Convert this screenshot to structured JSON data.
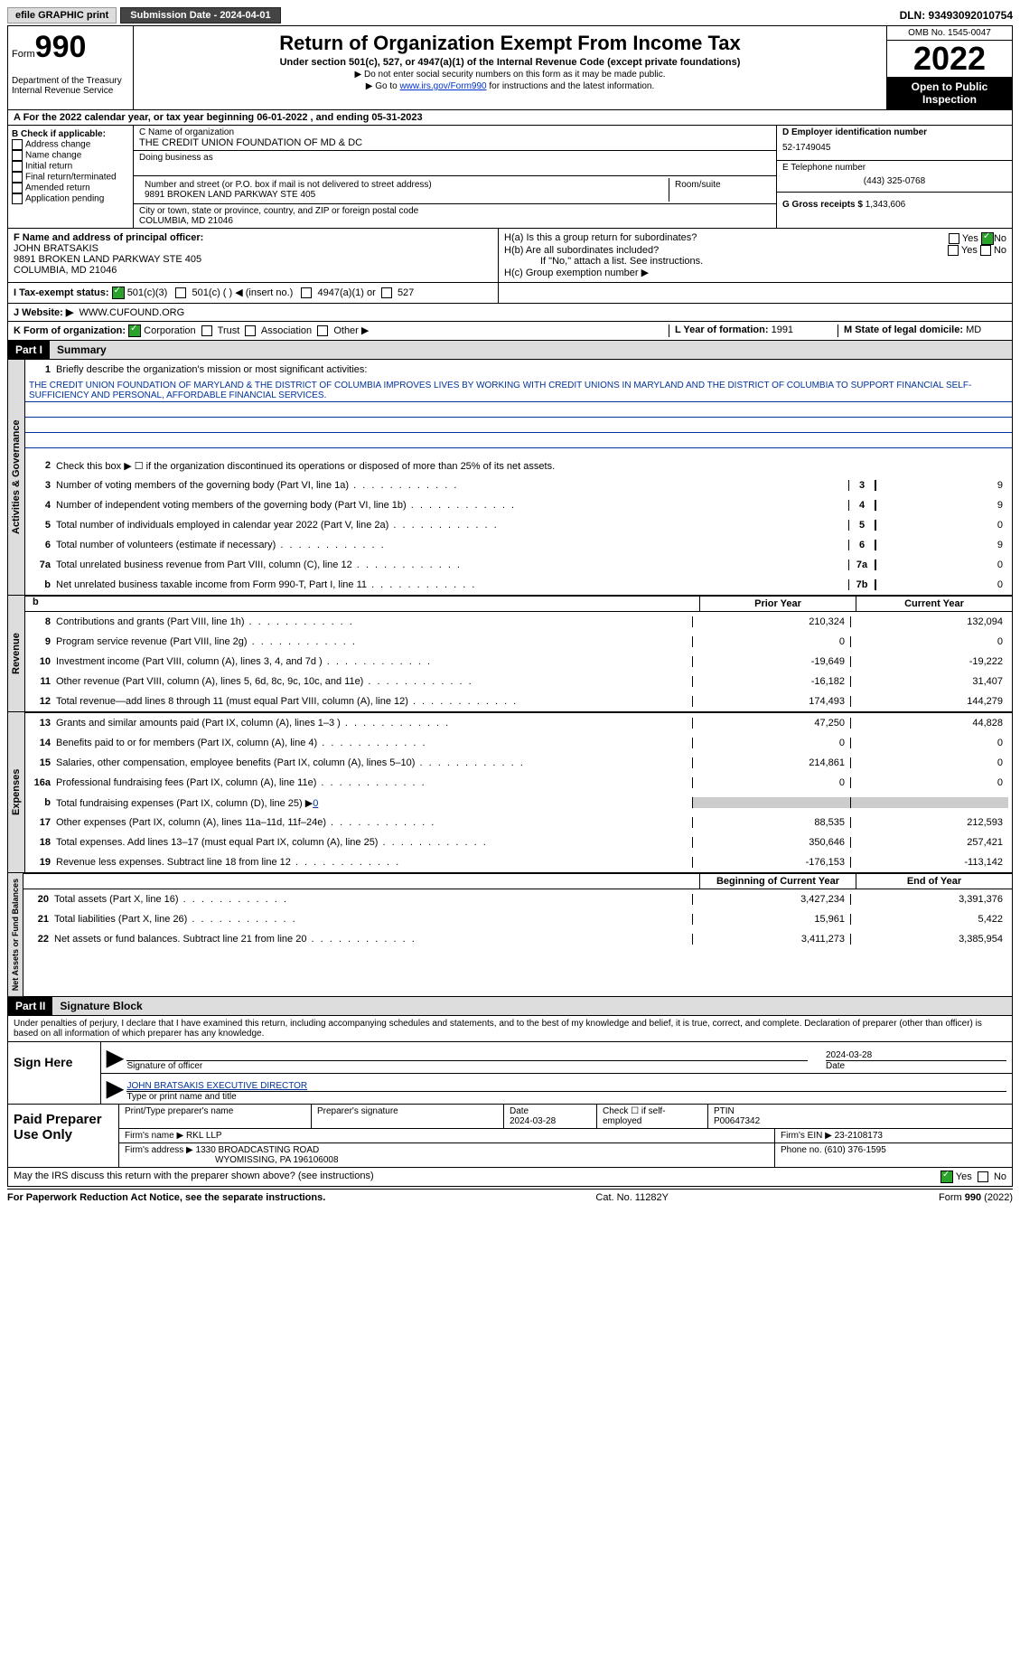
{
  "topbar": {
    "efile": "efile GRAPHIC print",
    "sub_date_label": "Submission Date - 2024-04-01",
    "dln": "DLN: 93493092010754"
  },
  "header": {
    "form_label": "Form",
    "form_num": "990",
    "dept": "Department of the Treasury Internal Revenue Service",
    "title": "Return of Organization Exempt From Income Tax",
    "sub1": "Under section 501(c), 527, or 4947(a)(1) of the Internal Revenue Code (except private foundations)",
    "sub2": "▶ Do not enter social security numbers on this form as it may be made public.",
    "sub3_pre": "▶ Go to ",
    "sub3_link": "www.irs.gov/Form990",
    "sub3_post": " for instructions and the latest information.",
    "omb": "OMB No. 1545-0047",
    "year": "2022",
    "open": "Open to Public Inspection"
  },
  "row_a": "A For the 2022 calendar year, or tax year beginning 06-01-2022    , and ending 05-31-2023",
  "box_b": {
    "label": "B Check if applicable:",
    "items": [
      "Address change",
      "Name change",
      "Initial return",
      "Final return/terminated",
      "Amended return",
      "Application pending"
    ]
  },
  "box_c": {
    "name_label": "C Name of organization",
    "name": "THE CREDIT UNION FOUNDATION OF MD & DC",
    "dba_label": "Doing business as",
    "dba": "",
    "addr_label": "Number and street (or P.O. box if mail is not delivered to street address)",
    "room_label": "Room/suite",
    "addr": "9891 BROKEN LAND PARKWAY STE 405",
    "city_label": "City or town, state or province, country, and ZIP or foreign postal code",
    "city": "COLUMBIA, MD  21046"
  },
  "box_d": {
    "ein_label": "D Employer identification number",
    "ein": "52-1749045",
    "tel_label": "E Telephone number",
    "tel": "(443) 325-0768",
    "gross_label": "G Gross receipts $",
    "gross": "1,343,606"
  },
  "box_f": {
    "label": "F Name and address of principal officer:",
    "name": "JOHN BRATSAKIS",
    "addr1": "9891 BROKEN LAND PARKWAY STE 405",
    "addr2": "COLUMBIA, MD  21046"
  },
  "box_h": {
    "a": "H(a)  Is this a group return for subordinates?",
    "b": "H(b)  Are all subordinates included?",
    "note": "If \"No,\" attach a list. See instructions.",
    "c": "H(c)  Group exemption number ▶"
  },
  "row_i": {
    "label": "I    Tax-exempt status:",
    "c3": "501(c)(3)",
    "c": "501(c) (  ) ◀ (insert no.)",
    "a1": "4947(a)(1) or",
    "s527": "527"
  },
  "row_j": {
    "label": "J    Website: ▶",
    "url": "WWW.CUFOUND.ORG"
  },
  "row_k": {
    "label": "K Form of organization:",
    "corp": "Corporation",
    "trust": "Trust",
    "assoc": "Association",
    "other": "Other ▶",
    "l_label": "L Year of formation:",
    "l_val": "1991",
    "m_label": "M State of legal domicile:",
    "m_val": "MD"
  },
  "part1": {
    "label": "Part I",
    "title": "Summary"
  },
  "summary": {
    "l1_label": "Briefly describe the organization's mission or most significant activities:",
    "l1_text": "THE CREDIT UNION FOUNDATION OF MARYLAND & THE DISTRICT OF COLUMBIA IMPROVES LIVES BY WORKING WITH CREDIT UNIONS IN MARYLAND AND THE DISTRICT OF COLUMBIA TO SUPPORT FINANCIAL SELF-SUFFICIENCY AND PERSONAL, AFFORDABLE FINANCIAL SERVICES.",
    "l2": "Check this box ▶ ☐ if the organization discontinued its operations or disposed of more than 25% of its net assets.",
    "rows": [
      {
        "n": "3",
        "d": "Number of voting members of the governing body (Part VI, line 1a)",
        "b": "3",
        "v": "9"
      },
      {
        "n": "4",
        "d": "Number of independent voting members of the governing body (Part VI, line 1b)",
        "b": "4",
        "v": "9"
      },
      {
        "n": "5",
        "d": "Total number of individuals employed in calendar year 2022 (Part V, line 2a)",
        "b": "5",
        "v": "0"
      },
      {
        "n": "6",
        "d": "Total number of volunteers (estimate if necessary)",
        "b": "6",
        "v": "9"
      },
      {
        "n": "7a",
        "d": "Total unrelated business revenue from Part VIII, column (C), line 12",
        "b": "7a",
        "v": "0"
      },
      {
        "n": "b",
        "d": "Net unrelated business taxable income from Form 990-T, Part I, line 11",
        "b": "7b",
        "v": "0"
      }
    ],
    "col_prior": "Prior Year",
    "col_curr": "Current Year",
    "revenue": [
      {
        "n": "8",
        "d": "Contributions and grants (Part VIII, line 1h)",
        "p": "210,324",
        "c": "132,094"
      },
      {
        "n": "9",
        "d": "Program service revenue (Part VIII, line 2g)",
        "p": "0",
        "c": "0"
      },
      {
        "n": "10",
        "d": "Investment income (Part VIII, column (A), lines 3, 4, and 7d )",
        "p": "-19,649",
        "c": "-19,222"
      },
      {
        "n": "11",
        "d": "Other revenue (Part VIII, column (A), lines 5, 6d, 8c, 9c, 10c, and 11e)",
        "p": "-16,182",
        "c": "31,407"
      },
      {
        "n": "12",
        "d": "Total revenue—add lines 8 through 11 (must equal Part VIII, column (A), line 12)",
        "p": "174,493",
        "c": "144,279"
      }
    ],
    "expenses": [
      {
        "n": "13",
        "d": "Grants and similar amounts paid (Part IX, column (A), lines 1–3 )",
        "p": "47,250",
        "c": "44,828"
      },
      {
        "n": "14",
        "d": "Benefits paid to or for members (Part IX, column (A), line 4)",
        "p": "0",
        "c": "0"
      },
      {
        "n": "15",
        "d": "Salaries, other compensation, employee benefits (Part IX, column (A), lines 5–10)",
        "p": "214,861",
        "c": "0"
      },
      {
        "n": "16a",
        "d": "Professional fundraising fees (Part IX, column (A), line 11e)",
        "p": "0",
        "c": "0"
      },
      {
        "n": "b",
        "d": "Total fundraising expenses (Part IX, column (D), line 25) ▶",
        "p": "gray",
        "c": "gray",
        "v": "0"
      },
      {
        "n": "17",
        "d": "Other expenses (Part IX, column (A), lines 11a–11d, 11f–24e)",
        "p": "88,535",
        "c": "212,593"
      },
      {
        "n": "18",
        "d": "Total expenses. Add lines 13–17 (must equal Part IX, column (A), line 25)",
        "p": "350,646",
        "c": "257,421"
      },
      {
        "n": "19",
        "d": "Revenue less expenses. Subtract line 18 from line 12",
        "p": "-176,153",
        "c": "-113,142"
      }
    ],
    "col_begin": "Beginning of Current Year",
    "col_end": "End of Year",
    "nafb": [
      {
        "n": "20",
        "d": "Total assets (Part X, line 16)",
        "p": "3,427,234",
        "c": "3,391,376"
      },
      {
        "n": "21",
        "d": "Total liabilities (Part X, line 26)",
        "p": "15,961",
        "c": "5,422"
      },
      {
        "n": "22",
        "d": "Net assets or fund balances. Subtract line 21 from line 20",
        "p": "3,411,273",
        "c": "3,385,954"
      }
    ]
  },
  "part2": {
    "label": "Part II",
    "title": "Signature Block"
  },
  "sig": {
    "decl": "Under penalties of perjury, I declare that I have examined this return, including accompanying schedules and statements, and to the best of my knowledge and belief, it is true, correct, and complete. Declaration of preparer (other than officer) is based on all information of which preparer has any knowledge.",
    "sign_here": "Sign Here",
    "sig_officer": "Signature of officer",
    "date": "Date",
    "date_val": "2024-03-28",
    "name_title": "JOHN BRATSAKIS EXECUTIVE DIRECTOR",
    "type_name": "Type or print name and title"
  },
  "prep": {
    "label": "Paid Preparer Use Only",
    "h1": "Print/Type preparer's name",
    "h2": "Preparer's signature",
    "h3": "Date",
    "h3v": "2024-03-28",
    "h4": "Check ☐ if self-employed",
    "h5": "PTIN",
    "h5v": "P00647342",
    "firm_label": "Firm's name    ▶",
    "firm": "RKL LLP",
    "ein_label": "Firm's EIN ▶",
    "ein": "23-2108173",
    "addr_label": "Firm's address ▶",
    "addr1": "1330 BROADCASTING ROAD",
    "addr2": "WYOMISSING, PA  196106008",
    "phone_label": "Phone no.",
    "phone": "(610) 376-1595"
  },
  "discuss": "May the IRS discuss this return with the preparer shown above? (see instructions)",
  "footer": {
    "pra": "For Paperwork Reduction Act Notice, see the separate instructions.",
    "cat": "Cat. No. 11282Y",
    "form": "Form 990 (2022)"
  },
  "yn": {
    "yes": "Yes",
    "no": "No"
  }
}
